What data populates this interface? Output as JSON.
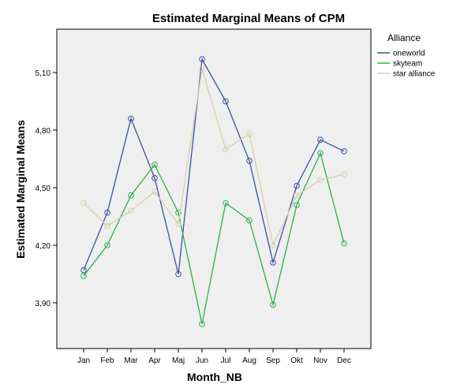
{
  "chart_data": {
    "type": "line",
    "title": "Estimated Marginal Means of CPM",
    "xlabel": "Month_NB",
    "ylabel": "Estimated Marginal Means",
    "categories": [
      "Jan",
      "Feb",
      "Mar",
      "Apr",
      "Maj",
      "Jun",
      "Jul",
      "Aug",
      "Sep",
      "Okt",
      "Nov",
      "Dec"
    ],
    "yticks": [
      "3,90",
      "4,20",
      "4,50",
      "4,80",
      "5,10"
    ],
    "ytick_values": [
      3.9,
      4.2,
      4.5,
      4.8,
      5.1
    ],
    "ylim": [
      3.7,
      5.33
    ],
    "grid": false,
    "legend": {
      "title": "Alliance",
      "position": "right"
    },
    "series": [
      {
        "name": "oneworld",
        "color": "#3a50a8",
        "values": [
          4.07,
          4.37,
          4.86,
          4.55,
          4.05,
          5.17,
          4.95,
          4.64,
          4.11,
          4.51,
          4.75,
          4.69
        ]
      },
      {
        "name": "skyteam",
        "color": "#2ab24a",
        "values": [
          4.04,
          4.2,
          4.46,
          4.62,
          4.37,
          3.79,
          4.42,
          4.33,
          3.89,
          4.41,
          4.68,
          4.21
        ]
      },
      {
        "name": "star alliance",
        "color": "#d8cfa6",
        "values": [
          4.42,
          4.3,
          4.38,
          4.48,
          4.31,
          5.12,
          4.7,
          4.78,
          4.2,
          4.46,
          4.54,
          4.57
        ]
      }
    ]
  }
}
